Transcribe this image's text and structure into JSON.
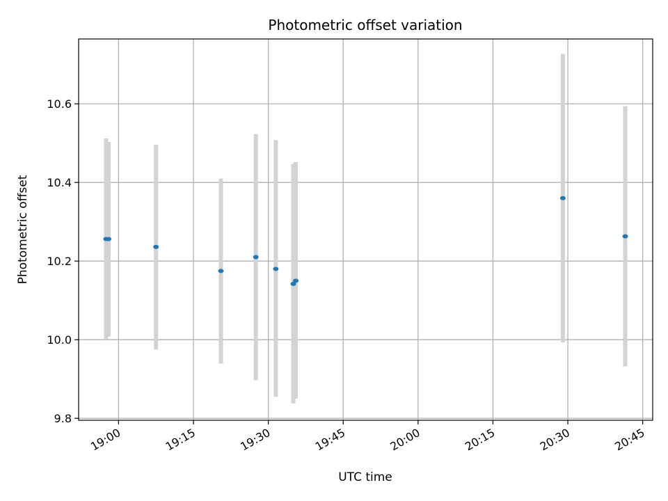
{
  "chart_data": {
    "type": "scatter",
    "title": "Photometric offset variation",
    "xlabel": "UTC time",
    "ylabel": "Photometric offset",
    "x_ticks": [
      "19:00",
      "19:15",
      "19:30",
      "19:45",
      "20:00",
      "20:15",
      "20:30",
      "20:45"
    ],
    "x_tick_minutes": [
      0,
      15,
      30,
      45,
      60,
      75,
      90,
      105
    ],
    "y_ticks": [
      9.8,
      10.0,
      10.2,
      10.4,
      10.6
    ],
    "xlim": [
      "18:52",
      "20:47"
    ],
    "ylim": [
      9.795,
      10.765
    ],
    "grid": true,
    "points": [
      {
        "time": "18:57:30",
        "y": 10.256,
        "err_low": 10.0,
        "err_high": 10.512
      },
      {
        "time": "18:58:00",
        "y": 10.256,
        "err_low": 10.008,
        "err_high": 10.503
      },
      {
        "time": "19:07:30",
        "y": 10.236,
        "err_low": 9.975,
        "err_high": 10.496
      },
      {
        "time": "19:20:30",
        "y": 10.175,
        "err_low": 9.939,
        "err_high": 10.41
      },
      {
        "time": "19:27:30",
        "y": 10.21,
        "err_low": 9.897,
        "err_high": 10.523
      },
      {
        "time": "19:31:30",
        "y": 10.18,
        "err_low": 9.855,
        "err_high": 10.508
      },
      {
        "time": "19:35:00",
        "y": 10.142,
        "err_low": 9.838,
        "err_high": 10.447
      },
      {
        "time": "19:35:30",
        "y": 10.15,
        "err_low": 9.85,
        "err_high": 10.452
      },
      {
        "time": "20:29:00",
        "y": 10.36,
        "err_low": 9.993,
        "err_high": 10.727
      },
      {
        "time": "20:41:30",
        "y": 10.263,
        "err_low": 9.932,
        "err_high": 10.594
      }
    ],
    "point_color": "#1f77b4",
    "errorbar_color": "#d3d3d3",
    "grid_color": "#b0b0b0"
  }
}
